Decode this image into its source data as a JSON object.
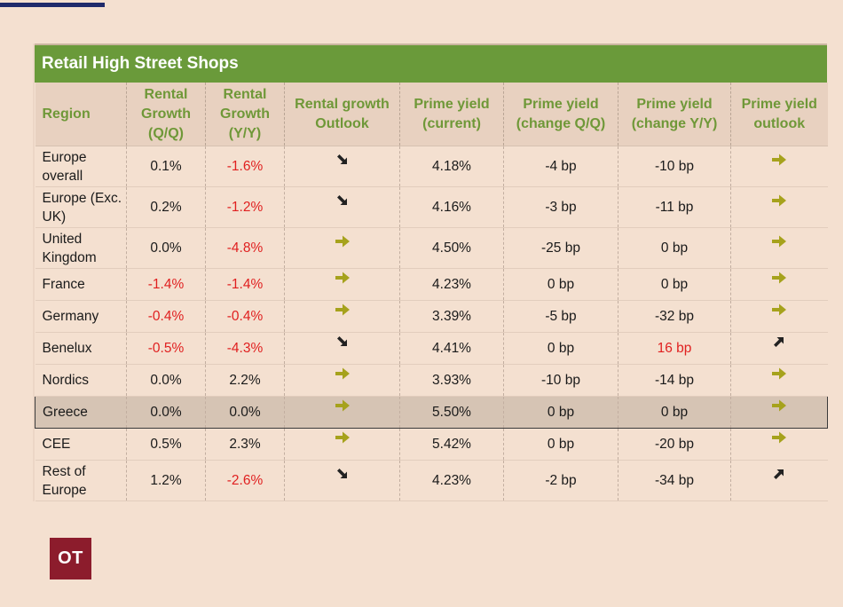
{
  "table": {
    "title": "Retail High Street Shops",
    "headers": [
      [
        "Region"
      ],
      [
        "Rental",
        "Growth",
        "(Q/Q)"
      ],
      [
        "Rental",
        "Growth",
        "(Y/Y)"
      ],
      [
        "Rental growth",
        "Outlook"
      ],
      [
        "Prime yield",
        "(current)"
      ],
      [
        "Prime yield",
        "(change Q/Q)"
      ],
      [
        "Prime yield",
        "(change Y/Y)"
      ],
      [
        "Prime yield",
        "outlook"
      ]
    ],
    "rows": [
      {
        "region": [
          "Europe",
          "overall"
        ],
        "rg_qq": "0.1%",
        "rg_yy": "-1.6%",
        "rg_outlook": "down-right-arrow-icon",
        "py_current": "4.18%",
        "py_qq": "-4 bp",
        "py_yy": "-10 bp",
        "py_outlook": "right-arrow-icon"
      },
      {
        "region": [
          "Europe (Exc.",
          "UK)"
        ],
        "rg_qq": "0.2%",
        "rg_yy": "-1.2%",
        "rg_outlook": "down-right-arrow-icon",
        "py_current": "4.16%",
        "py_qq": "-3 bp",
        "py_yy": "-11 bp",
        "py_outlook": "right-arrow-icon"
      },
      {
        "region": [
          "United",
          "Kingdom"
        ],
        "rg_qq": "0.0%",
        "rg_yy": "-4.8%",
        "rg_outlook": "right-arrow-icon",
        "py_current": "4.50%",
        "py_qq": "-25 bp",
        "py_yy": "0 bp",
        "py_outlook": "right-arrow-icon"
      },
      {
        "region": [
          "France"
        ],
        "rg_qq": "-1.4%",
        "rg_yy": "-1.4%",
        "rg_outlook": "right-arrow-icon",
        "py_current": "4.23%",
        "py_qq": "0 bp",
        "py_yy": "0 bp",
        "py_outlook": "right-arrow-icon"
      },
      {
        "region": [
          "Germany"
        ],
        "rg_qq": "-0.4%",
        "rg_yy": "-0.4%",
        "rg_outlook": "right-arrow-icon",
        "py_current": "3.39%",
        "py_qq": "-5 bp",
        "py_yy": "-32 bp",
        "py_outlook": "right-arrow-icon"
      },
      {
        "region": [
          "Benelux"
        ],
        "rg_qq": "-0.5%",
        "rg_yy": "-4.3%",
        "rg_outlook": "down-right-arrow-icon",
        "py_current": "4.41%",
        "py_qq": "0 bp",
        "py_yy": "16 bp",
        "py_outlook": "up-right-arrow-icon"
      },
      {
        "region": [
          "Nordics"
        ],
        "rg_qq": "0.0%",
        "rg_yy": "2.2%",
        "rg_outlook": "right-arrow-icon",
        "py_current": "3.93%",
        "py_qq": "-10 bp",
        "py_yy": "-14 bp",
        "py_outlook": "right-arrow-icon"
      },
      {
        "region": [
          "Greece"
        ],
        "rg_qq": "0.0%",
        "rg_yy": "0.0%",
        "rg_outlook": "right-arrow-icon",
        "py_current": "5.50%",
        "py_qq": "0 bp",
        "py_yy": "0 bp",
        "py_outlook": "right-arrow-icon"
      },
      {
        "region": [
          "CEE"
        ],
        "rg_qq": "0.5%",
        "rg_yy": "2.3%",
        "rg_outlook": "right-arrow-icon",
        "py_current": "5.42%",
        "py_qq": "0 bp",
        "py_yy": "-20 bp",
        "py_outlook": "right-arrow-icon"
      },
      {
        "region": [
          "Rest of",
          "Europe"
        ],
        "rg_qq": "1.2%",
        "rg_yy": "-2.6%",
        "rg_outlook": "down-right-arrow-icon",
        "py_current": "4.23%",
        "py_qq": "-2 bp",
        "py_yy": "-34 bp",
        "py_outlook": "up-right-arrow-icon"
      }
    ],
    "negative_cells": [
      "0.rg_yy",
      "1.rg_yy",
      "2.rg_yy",
      "3.rg_qq",
      "3.rg_yy",
      "4.rg_qq",
      "4.rg_yy",
      "5.rg_qq",
      "5.rg_yy",
      "5.py_yy",
      "9.rg_yy"
    ],
    "highlighted_row": "Greece",
    "colors": {
      "background": "#f4e0d0",
      "title_bar": "#6a9a3a",
      "header_text": "#6f9838",
      "negative_text": "#e02020",
      "arrow_olive": "#a6a21c",
      "arrow_dark": "#222222",
      "highlight_row": "#d6c4b4",
      "logo_bg": "#8c1c2c"
    }
  },
  "logo": {
    "text": "OT"
  }
}
